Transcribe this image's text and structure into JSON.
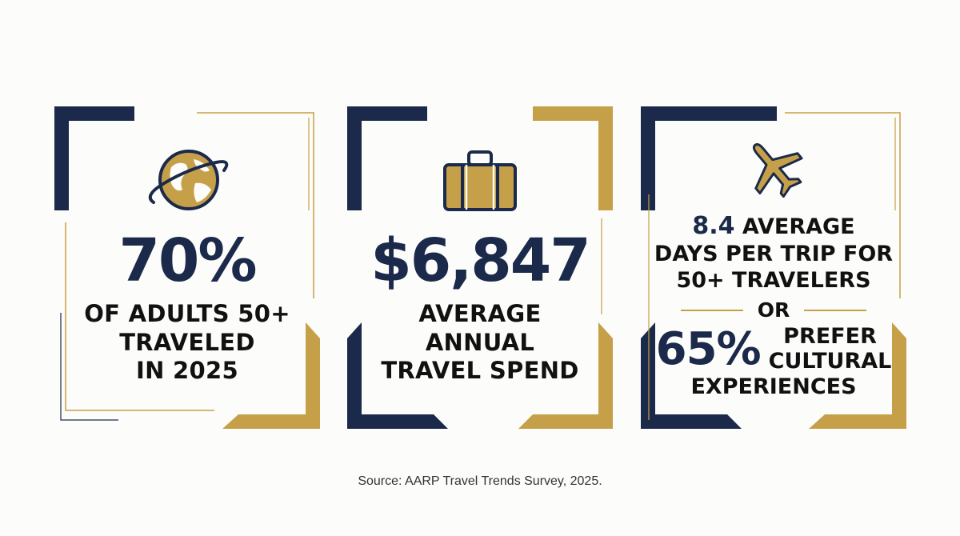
{
  "colors": {
    "navy": "#1b2a4a",
    "gold": "#c6a049",
    "background": "#fcfcfa"
  },
  "cards": [
    {
      "icon": "globe-icon",
      "stat": "70%",
      "caption_lines": [
        "OF ADULTS 50+",
        "TRAVELED",
        "IN 2025"
      ]
    },
    {
      "icon": "suitcase-icon",
      "stat": "$6,847",
      "caption_lines": [
        "AVERAGE",
        "ANNUAL",
        "TRAVEL SPEND"
      ]
    },
    {
      "icon": "airplane-icon",
      "stat": "8.4",
      "stat_text": " AVERAGE",
      "caption_lines": [
        "DAYS PER TRIP FOR",
        "50+ TRAVELERS"
      ],
      "separator": "OR",
      "alt_stat": "65%",
      "alt_lines": [
        "PREFER",
        "CULTURAL",
        "EXPERIENCES"
      ]
    }
  ],
  "source": "Source: AARP Travel Trends Survey, 2025."
}
